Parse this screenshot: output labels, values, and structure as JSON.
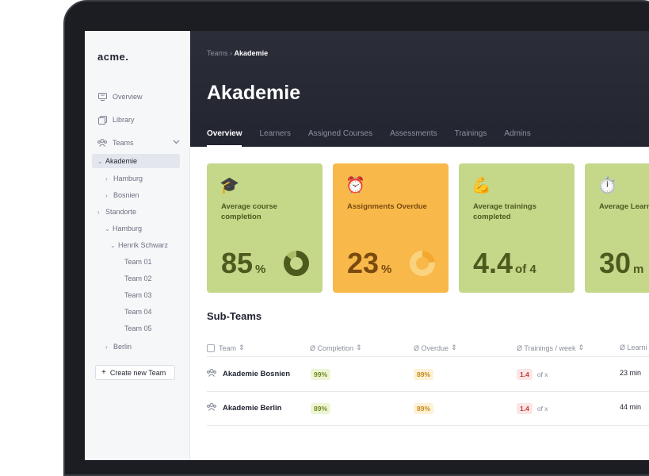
{
  "app": {
    "logo": "acme."
  },
  "sidebar": {
    "nav": [
      {
        "label": "Overview",
        "icon": "overview-icon"
      },
      {
        "label": "Library",
        "icon": "library-icon"
      },
      {
        "label": "Teams",
        "icon": "teams-icon"
      }
    ],
    "tree": [
      {
        "label": "Akademie",
        "expanded": true,
        "active": true
      },
      {
        "label": "Hamburg"
      },
      {
        "label": "Bosnien"
      },
      {
        "label": "Standorte"
      },
      {
        "label": "Hamburg",
        "expanded": true
      },
      {
        "label": "Henrik Schwarz",
        "expanded": true
      },
      {
        "label": "Team 01"
      },
      {
        "label": "Team 02"
      },
      {
        "label": "Team 03"
      },
      {
        "label": "Team 04"
      },
      {
        "label": "Team 05"
      },
      {
        "label": "Berlin"
      }
    ],
    "create_label": "Create new Team"
  },
  "header": {
    "breadcrumb_parent": "Teams",
    "breadcrumb_sep": "›",
    "breadcrumb_current": "Akademie",
    "title": "Akademie",
    "tabs": [
      "Overview",
      "Learners",
      "Assigned Courses",
      "Assessments",
      "Trainings",
      "Admins"
    ],
    "active_tab": "Overview"
  },
  "cards": [
    {
      "emoji": "🎓",
      "label": "Average course completion",
      "value": "85",
      "unit": "%",
      "fraction": 0.85,
      "color": "#c5d88a"
    },
    {
      "emoji": "⏰",
      "label": "Assignments Overdue",
      "value": "23",
      "unit": "%",
      "fraction": 0.23,
      "color": "#f8b94a"
    },
    {
      "emoji": "💪",
      "label": "Average trainings completed",
      "value": "4.4",
      "unit": "of 4",
      "color": "#c5d88a"
    },
    {
      "emoji": "⏱️",
      "label": "Average Learning Time",
      "value": "30",
      "unit": "m",
      "color": "#c5d88a"
    }
  ],
  "subteams": {
    "title": "Sub-Teams",
    "columns": [
      "Team",
      "Ø Completion",
      "Ø Overdue",
      "Ø Trainings / week",
      "Ø Learni"
    ],
    "rows": [
      {
        "team": "Akademie Bosnien",
        "completion": "99%",
        "overdue": "89%",
        "trainings": "1.4",
        "of": "of x",
        "learning": "23 min"
      },
      {
        "team": "Akademie Berlin",
        "completion": "89%",
        "overdue": "89%",
        "trainings": "1.4",
        "of": "of x",
        "learning": "44 min"
      }
    ]
  }
}
